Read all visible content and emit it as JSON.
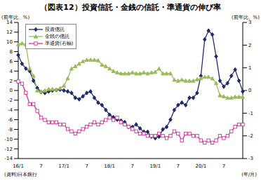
{
  "chart_data": {
    "type": "line",
    "title": "（図表12）投資信託・金銭の信託・準通貨の伸び率",
    "ylabel": "(前年比、%)",
    "y2label": "(前年比、%)",
    "xlabel": "(年/月)",
    "source": "(資料)日本銀行",
    "categories": [
      "16/1",
      null,
      null,
      null,
      null,
      null,
      "7",
      null,
      null,
      null,
      null,
      null,
      "17/1",
      null,
      null,
      null,
      null,
      null,
      "7",
      null,
      null,
      null,
      null,
      null,
      "18/1",
      null,
      null,
      null,
      null,
      null,
      "7",
      null,
      null,
      null,
      null,
      null,
      "19/1",
      null,
      null,
      null,
      null,
      null,
      "7",
      null,
      null,
      null,
      null,
      null,
      "20/1",
      null,
      null,
      null,
      null,
      null,
      "7",
      null,
      null,
      null,
      null,
      null
    ],
    "ylim": [
      -14,
      14
    ],
    "yticks": [
      -14,
      -12,
      -10,
      -8,
      -6,
      -4,
      -2,
      0,
      2,
      4,
      6,
      8,
      10,
      12,
      14
    ],
    "y2lim": [
      -3,
      3
    ],
    "y2ticks": [
      -3,
      -2,
      -1,
      0,
      1,
      2,
      3
    ],
    "grid": false,
    "legend": "upper left",
    "series": [
      {
        "name": "投資信託",
        "color": "#1f2a6e",
        "marker": "diamond",
        "values": [
          7.3,
          5.5,
          4.5,
          4,
          2,
          0.5,
          -0.3,
          -0.5,
          -0.2,
          0,
          0.1,
          0.2,
          0,
          -0.2,
          -0.5,
          -1.5,
          -1.8,
          -1.2,
          -0.5,
          -0.2,
          -1.5,
          -2.5,
          -3,
          -4,
          -5,
          -5.5,
          -6,
          -6.2,
          -6.5,
          -7.5,
          -7.5,
          -7,
          -7.8,
          -8.5,
          -8.5,
          -9.5,
          -9.8,
          -9.5,
          -8,
          -7.5,
          -6,
          -4,
          -3,
          -2.5,
          -3,
          -1.5,
          -1.5,
          -0.5,
          3,
          10.5,
          12.3,
          11.5,
          7,
          2,
          0.8,
          1.5,
          3,
          4.3,
          2,
          -0.2
        ]
      },
      {
        "name": "金銭の信託",
        "color": "#9bbb59",
        "marker": "triangle",
        "values": [
          9.5,
          9.7,
          9.5,
          4.5,
          3,
          0,
          -0.2,
          0,
          0.3,
          0.3,
          0.2,
          0.5,
          1,
          2.5,
          4.5,
          5,
          5.5,
          6,
          6.3,
          6.3,
          6.3,
          6.2,
          5.3,
          5,
          4.5,
          4,
          3.7,
          3.5,
          3.5,
          3.5,
          3.7,
          3.5,
          3.5,
          3.7,
          3.5,
          3.7,
          3.8,
          4.5,
          3.5,
          3.5,
          3.5,
          2.2,
          2,
          2.2,
          2,
          2,
          2,
          2.3,
          2.5,
          2.8,
          2.8,
          2.5,
          1.5,
          -1,
          -1.2,
          -1.5,
          -1.5,
          -1.3,
          -1.3,
          -1.3
        ]
      },
      {
        "name": "準通貨(右軸)",
        "color": "#cc3399",
        "marker": "square",
        "axis": "y2",
        "values": [
          0.4,
          0.3,
          -0.1,
          -0.6,
          -0.6,
          -0.9,
          -1.2,
          -1.3,
          -1.4,
          -1.4,
          -1.4,
          -1.5,
          -1.5,
          -1.7,
          -1.8,
          -1.9,
          -1.8,
          -1.7,
          -1.6,
          -1.5,
          -1.4,
          -1.5,
          -1.4,
          -1.3,
          -1.2,
          -1.3,
          -1.2,
          -1.4,
          -1.5,
          -1.6,
          -1.7,
          -1.8,
          -1.9,
          -1.9,
          -2.0,
          -2.0,
          -2.0,
          -1.9,
          -2.0,
          -2.1,
          -2.0,
          -1.8,
          -1.9,
          -2.2,
          -1.9,
          -1.9,
          -2.0,
          -2.0,
          -2.2,
          -2.3,
          -2.2,
          -2.3,
          -2.2,
          -2.0,
          -2.1,
          -2.0,
          -1.8,
          -1.6,
          -1.5,
          -1.5
        ]
      }
    ]
  }
}
